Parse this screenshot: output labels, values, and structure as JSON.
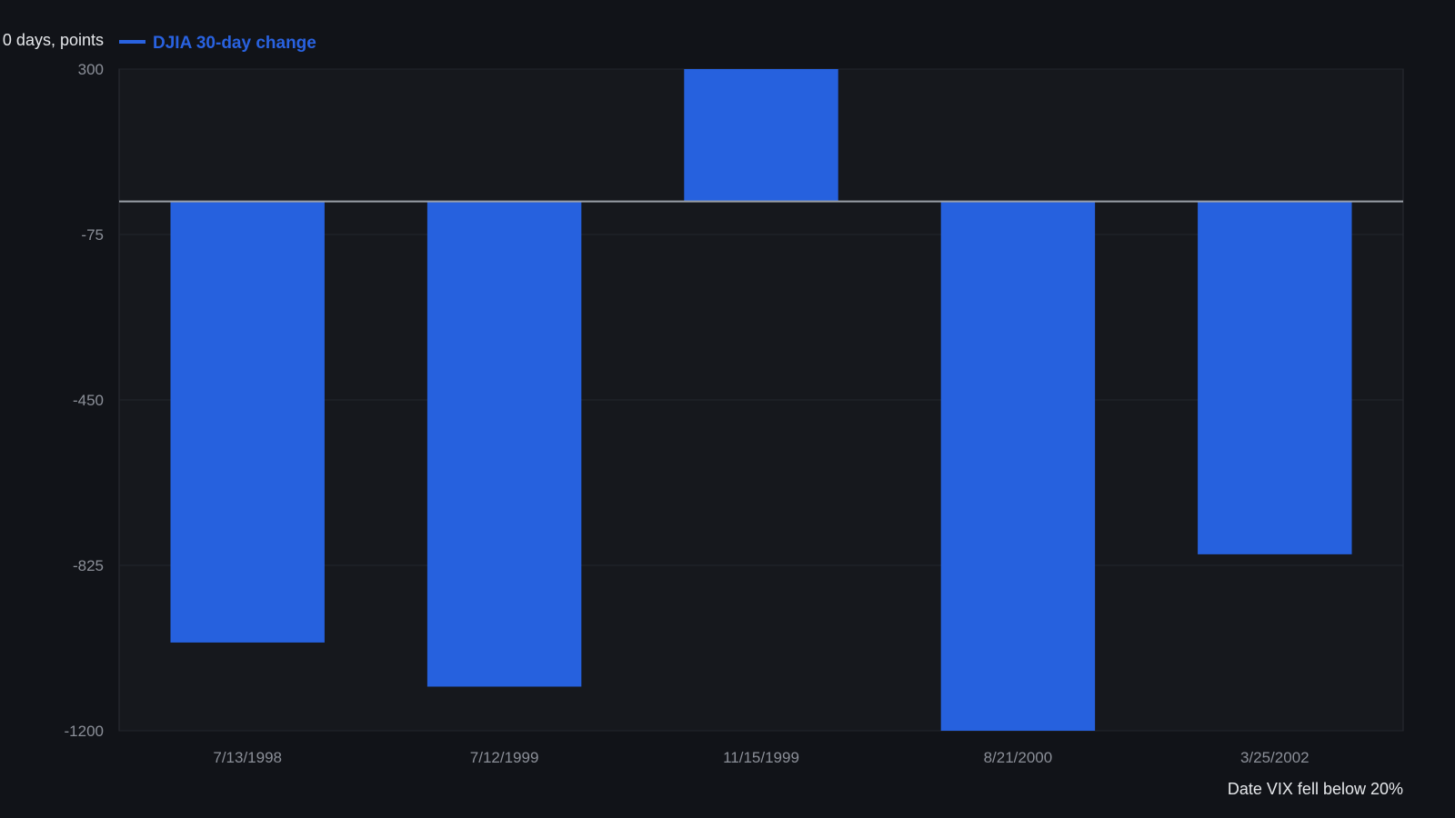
{
  "colors": {
    "background": "#111318",
    "plot_background": "#16181d",
    "bar": "#2661de",
    "gridline": "#23262d",
    "zero_line": "#9aa0a8",
    "legend": "#2962e0"
  },
  "chart_data": {
    "type": "bar",
    "title": "",
    "xlabel": "Date VIX fell below 20%",
    "ylabel": "0 days, points",
    "categories": [
      "7/13/1998",
      "7/12/1999",
      "11/15/1999",
      "8/21/2000",
      "3/25/2002"
    ],
    "series": [
      {
        "name": "DJIA 30-day change",
        "values": [
          -1000,
          -1100,
          300,
          -1200,
          -800
        ]
      }
    ],
    "ylim": [
      -1200,
      300
    ],
    "yticks": [
      300,
      -75,
      -450,
      -825,
      -1200
    ],
    "ytick_labels": [
      "300",
      "-75",
      "-450",
      "-825",
      "-1200"
    ],
    "grid": true,
    "legend_position": "top-left"
  }
}
